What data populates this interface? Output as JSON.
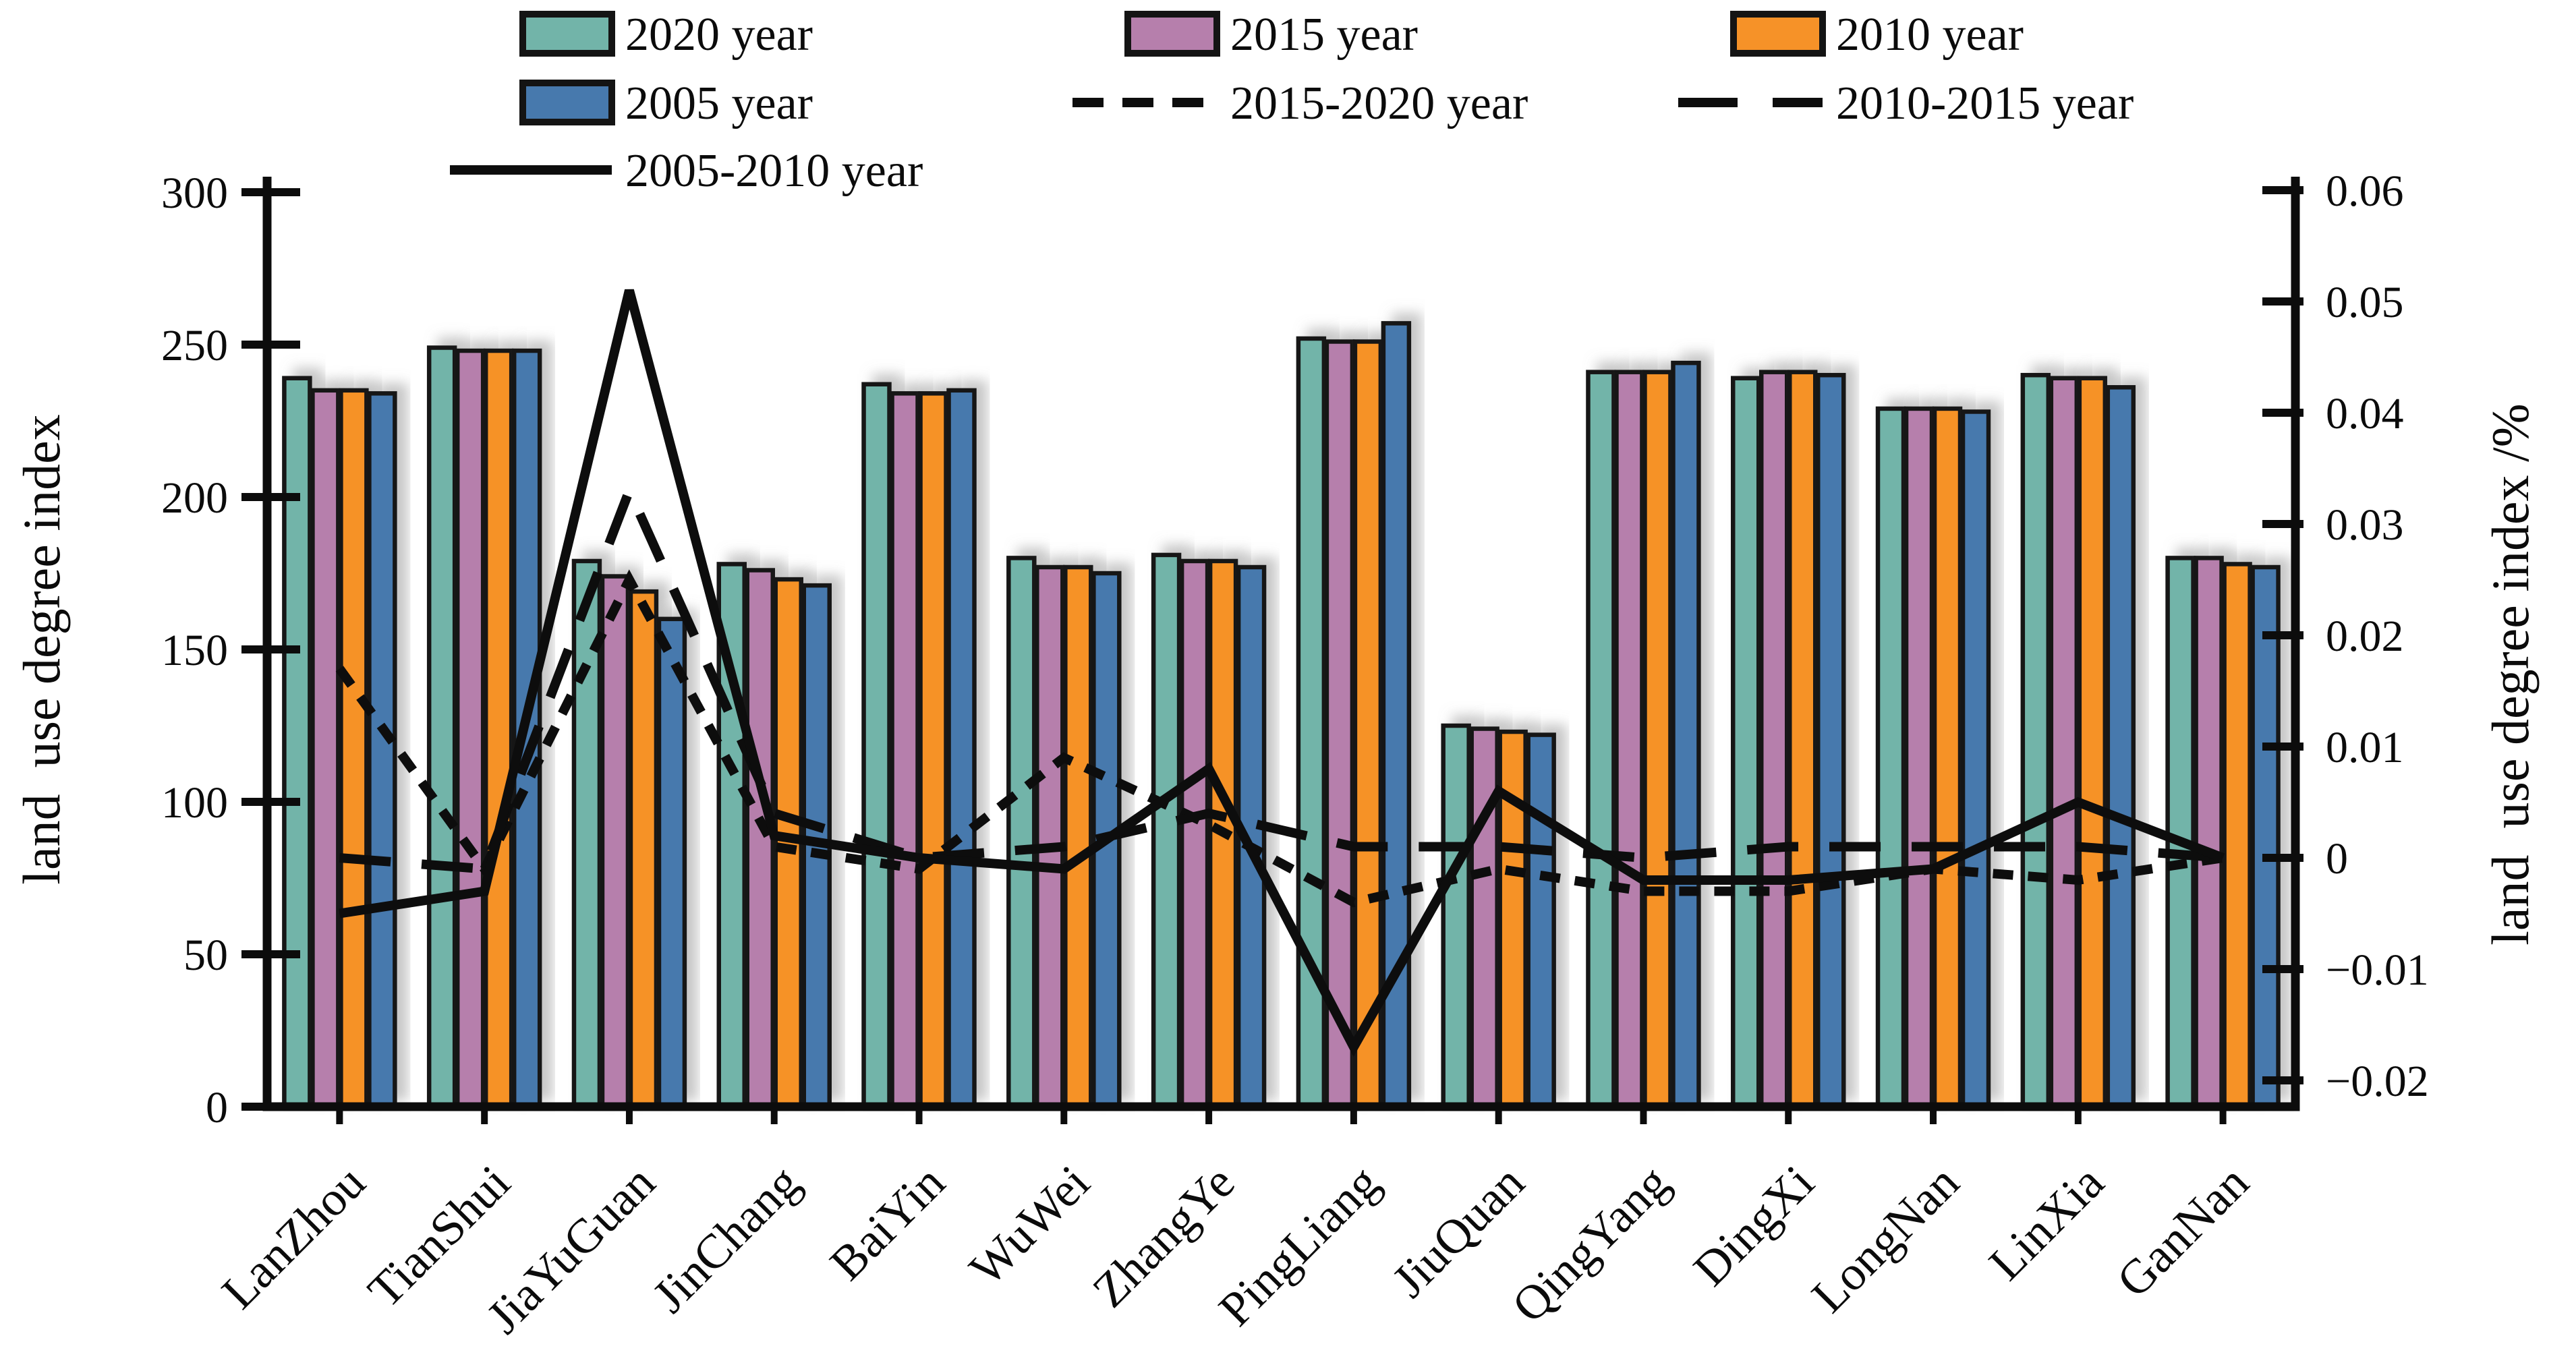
{
  "chart_data": {
    "type": "bar+line",
    "title": "",
    "categories": [
      "LanZhou",
      "TianShui",
      "JiaYuGuan",
      "JinChang",
      "BaiYin",
      "WuWei",
      "ZhangYe",
      "PingLiang",
      "JiuQuan",
      "QingYang",
      "DingXi",
      "LongNan",
      "LinXia",
      "GanNan"
    ],
    "bar_series": [
      {
        "name": "2020 year",
        "color": "#72b4a9",
        "axis": "left",
        "values": [
          239,
          249,
          179,
          178,
          237,
          180,
          181,
          252,
          125,
          241,
          239,
          229,
          240,
          180
        ]
      },
      {
        "name": "2015 year",
        "color": "#b67fac",
        "axis": "left",
        "values": [
          235,
          248,
          174,
          176,
          234,
          177,
          179,
          251,
          124,
          241,
          241,
          229,
          239,
          180
        ]
      },
      {
        "name": "2010 year",
        "color": "#f69228",
        "axis": "left",
        "values": [
          235,
          248,
          169,
          173,
          234,
          177,
          179,
          251,
          123,
          241,
          241,
          229,
          239,
          178
        ]
      },
      {
        "name": "2005 year",
        "color": "#4779ad",
        "axis": "left",
        "values": [
          234,
          248,
          160,
          171,
          235,
          175,
          177,
          257,
          122,
          244,
          240,
          228,
          236,
          177
        ]
      }
    ],
    "line_series": [
      {
        "name": "2015-2020 year",
        "style": "short-dash",
        "axis": "right",
        "values": [
          0.017,
          -0.001,
          0.025,
          0.001,
          -0.001,
          0.009,
          0.003,
          -0.004,
          -0.001,
          -0.003,
          -0.003,
          -0.001,
          -0.002,
          0
        ]
      },
      {
        "name": "2010-2015 year",
        "style": "long-dash",
        "axis": "right",
        "values": [
          0,
          -0.001,
          0.033,
          0.004,
          0,
          0.001,
          0.004,
          0.001,
          0.001,
          0,
          0.001,
          0.001,
          0.001,
          0
        ]
      },
      {
        "name": "2005-2010 year",
        "style": "solid",
        "axis": "right",
        "values": [
          -0.005,
          -0.003,
          0.051,
          0.002,
          0,
          -0.001,
          0.008,
          -0.017,
          0.006,
          -0.002,
          -0.002,
          -0.001,
          0.005,
          0
        ]
      }
    ],
    "left_axis": {
      "label": "land  use degree index",
      "tick_labels": [
        "300",
        "250",
        "200",
        "150",
        "100",
        "50",
        "0"
      ],
      "tick_values": [
        300,
        250,
        200,
        150,
        100,
        50,
        0
      ],
      "range": [
        0,
        300
      ]
    },
    "right_axis": {
      "label": "land  use degree index /%",
      "tick_labels": [
        "0.06",
        "0.05",
        "0.04",
        "0.03",
        "0.02",
        "0.01",
        "0",
        "−0.01",
        "−0.02"
      ],
      "tick_values": [
        0.06,
        0.05,
        0.04,
        0.03,
        0.02,
        0.01,
        0,
        -0.01,
        -0.02
      ],
      "range": [
        -0.02,
        0.06
      ]
    },
    "legend": {
      "rows": [
        [
          {
            "type": "swatch",
            "series": 0,
            "label": "2020 year"
          },
          {
            "type": "swatch",
            "series": 1,
            "label": "2015 year"
          },
          {
            "type": "swatch",
            "series": 2,
            "label": "2010 year"
          }
        ],
        [
          {
            "type": "swatch",
            "series": 3,
            "label": "2005 year"
          },
          {
            "type": "line",
            "series": 0,
            "label": "2015-2020 year"
          },
          {
            "type": "line",
            "series": 1,
            "label": "2010-2015 year"
          }
        ],
        [
          {
            "type": "line",
            "series": 2,
            "label": "2005-2010 year"
          }
        ]
      ]
    },
    "grid": "off",
    "background": "#ffffff",
    "line_color": "#0d0d0d",
    "bar_outline": "#161616"
  }
}
